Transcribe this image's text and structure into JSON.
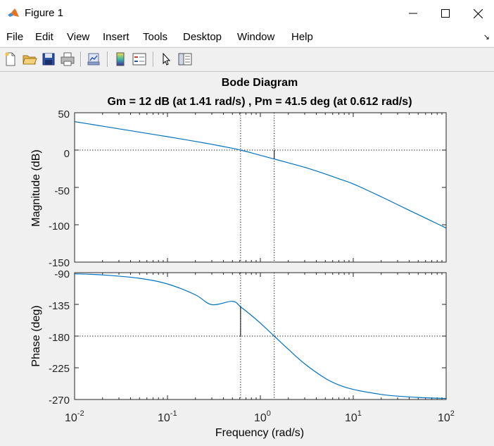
{
  "window": {
    "title": "Figure 1"
  },
  "menu": [
    "File",
    "Edit",
    "View",
    "Insert",
    "Tools",
    "Desktop",
    "Window",
    "Help"
  ],
  "toolbar": [
    "new-figure-icon",
    "open-file-icon",
    "save-icon",
    "print-icon",
    "link-plot-icon",
    "colorbar-icon",
    "legend-icon",
    "pointer-icon",
    "property-inspector-icon"
  ],
  "plot": {
    "title": "Bode Diagram",
    "subtitle": "Gm = 12 dB (at 1.41 rad/s) ,  Pm = 41.5 deg (at 0.612 rad/s)",
    "xlabel": "Frequency  (rad/s)",
    "mag_ylabel": "Magnitude (dB)",
    "phase_ylabel": "Phase (deg)",
    "x_tick_base": "10",
    "x_tick_exponents": [
      "-2",
      "-1",
      "0",
      "1",
      "2"
    ],
    "mag_ticks": [
      "50",
      "0",
      "-50",
      "-100",
      "-150"
    ],
    "phase_ticks": [
      "-90",
      "-135",
      "-180",
      "-225",
      "-270"
    ]
  },
  "chart_data": [
    {
      "type": "line",
      "panel": "magnitude",
      "xscale": "log",
      "xlim": [
        0.01,
        100
      ],
      "ylim": [
        -150,
        50
      ],
      "ylabel": "Magnitude (dB)",
      "series": [
        {
          "color": "#0072bd",
          "x": [
            0.01,
            0.02,
            0.05,
            0.1,
            0.2,
            0.3,
            0.5,
            0.612,
            0.8,
            1,
            1.41,
            2,
            3,
            5,
            7,
            10,
            20,
            30,
            50,
            70,
            100
          ],
          "y": [
            38.1,
            32.0,
            24.0,
            17.9,
            11.6,
            7.7,
            2.4,
            0.0,
            -3.7,
            -7.0,
            -12.0,
            -17.0,
            -23.1,
            -32.0,
            -38.4,
            -45.3,
            -62.5,
            -73.1,
            -86.4,
            -95.1,
            -104.4
          ]
        }
      ],
      "annotations": [
        {
          "kind": "reference-line",
          "y": 0,
          "style": "dotted"
        },
        {
          "kind": "gain-margin-marker",
          "x": 1.41,
          "y_from": 0,
          "y_to": -12
        },
        {
          "kind": "crossover-guide",
          "x": 0.612,
          "style": "dotted"
        },
        {
          "kind": "crossover-guide",
          "x": 1.41,
          "style": "dotted"
        }
      ]
    },
    {
      "type": "line",
      "panel": "phase",
      "xscale": "log",
      "xlim": [
        0.01,
        100
      ],
      "ylim": [
        -270,
        -90
      ],
      "ylabel": "Phase (deg)",
      "series": [
        {
          "color": "#0072bd",
          "x": [
            0.01,
            0.02,
            0.05,
            0.1,
            0.2,
            0.3,
            0.5,
            0.612,
            0.8,
            1,
            1.41,
            2,
            3,
            5,
            7,
            10,
            20,
            30,
            50,
            70,
            100
          ],
          "y": [
            -91.6,
            -93.2,
            -98.0,
            -106.0,
            -121.5,
            -135.4,
            -130.6,
            -138.5,
            -150.6,
            -161.6,
            -180.0,
            -198.7,
            -219.4,
            -240.0,
            -249.4,
            -255.7,
            -262.8,
            -265.2,
            -267.1,
            -267.9,
            -268.5
          ]
        }
      ],
      "annotations": [
        {
          "kind": "reference-line",
          "y": -180,
          "style": "dotted"
        },
        {
          "kind": "phase-margin-marker",
          "x": 0.612,
          "y_from": -180,
          "y_to": -138.5
        },
        {
          "kind": "crossover-guide",
          "x": 0.612,
          "style": "dotted"
        },
        {
          "kind": "crossover-guide",
          "x": 1.41,
          "style": "dotted"
        }
      ]
    }
  ]
}
